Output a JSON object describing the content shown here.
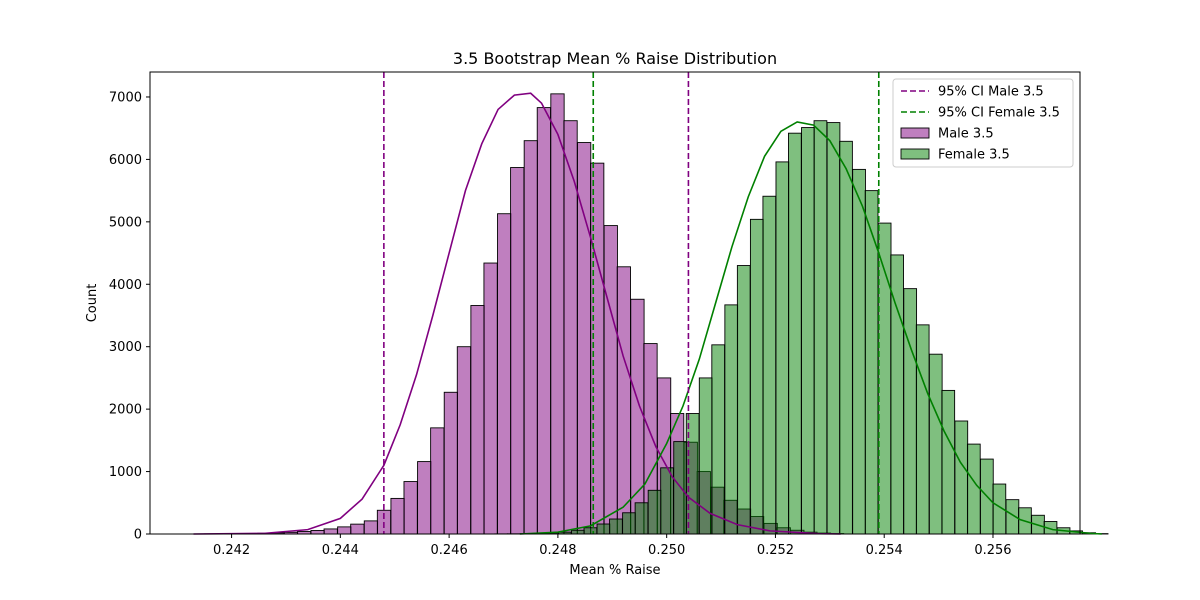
{
  "chart_data": {
    "type": "histogram",
    "title": "3.5 Bootstrap Mean % Raise Distribution",
    "xlabel": "Mean % Raise",
    "ylabel": "Count",
    "xlim": [
      0.2405,
      0.2576
    ],
    "ylim": [
      0,
      7400
    ],
    "xticks": [
      "0.242",
      "0.244",
      "0.246",
      "0.248",
      "0.250",
      "0.252",
      "0.254",
      "0.256"
    ],
    "yticks": [
      "0",
      "1000",
      "2000",
      "3000",
      "4000",
      "5000",
      "6000",
      "7000"
    ],
    "grid": false,
    "legend_position": "top-right",
    "legend": [
      {
        "label": "95% CI Male 3.5",
        "kind": "dashed-line",
        "color": "#800080"
      },
      {
        "label": "95% CI Female 3.5",
        "kind": "dashed-line",
        "color": "#008000"
      },
      {
        "label": "Male 3.5",
        "kind": "patch",
        "color": "#800080"
      },
      {
        "label": "Female 3.5",
        "kind": "patch",
        "color": "#008000"
      }
    ],
    "series": [
      {
        "name": "Male 3.5",
        "color": "#800080",
        "bin_width": 0.000245,
        "bins": [
          [
            0.24125,
            0
          ],
          [
            0.2415,
            2
          ],
          [
            0.24174,
            3
          ],
          [
            0.24199,
            5
          ],
          [
            0.24223,
            8
          ],
          [
            0.24248,
            12
          ],
          [
            0.24272,
            18
          ],
          [
            0.24297,
            27
          ],
          [
            0.24321,
            40
          ],
          [
            0.24346,
            57
          ],
          [
            0.2437,
            81
          ],
          [
            0.24395,
            114
          ],
          [
            0.24419,
            158
          ],
          [
            0.24444,
            210
          ],
          [
            0.24468,
            380
          ],
          [
            0.24493,
            570
          ],
          [
            0.24517,
            840
          ],
          [
            0.24542,
            1160
          ],
          [
            0.24566,
            1700
          ],
          [
            0.24591,
            2270
          ],
          [
            0.24615,
            3000
          ],
          [
            0.2464,
            3660
          ],
          [
            0.24664,
            4340
          ],
          [
            0.24689,
            5130
          ],
          [
            0.24713,
            5870
          ],
          [
            0.24738,
            6300
          ],
          [
            0.24762,
            6830
          ],
          [
            0.24787,
            7050
          ],
          [
            0.24811,
            6620
          ],
          [
            0.24836,
            6270
          ],
          [
            0.2486,
            5940
          ],
          [
            0.24885,
            4940
          ],
          [
            0.24909,
            4280
          ],
          [
            0.24934,
            3760
          ],
          [
            0.24958,
            3050
          ],
          [
            0.24983,
            2500
          ],
          [
            0.25007,
            1930
          ],
          [
            0.25032,
            1470
          ],
          [
            0.25056,
            1000
          ],
          [
            0.25081,
            750
          ],
          [
            0.25105,
            540
          ],
          [
            0.2513,
            400
          ],
          [
            0.25154,
            280
          ],
          [
            0.25179,
            170
          ],
          [
            0.25203,
            100
          ],
          [
            0.25228,
            60
          ],
          [
            0.25252,
            30
          ],
          [
            0.25277,
            15
          ],
          [
            0.25301,
            7
          ]
        ],
        "kde": [
          [
            0.2413,
            0
          ],
          [
            0.2426,
            10
          ],
          [
            0.2434,
            70
          ],
          [
            0.244,
            250
          ],
          [
            0.2444,
            560
          ],
          [
            0.2448,
            1100
          ],
          [
            0.2451,
            1750
          ],
          [
            0.2454,
            2550
          ],
          [
            0.2457,
            3500
          ],
          [
            0.246,
            4500
          ],
          [
            0.2463,
            5500
          ],
          [
            0.2466,
            6250
          ],
          [
            0.2469,
            6800
          ],
          [
            0.2472,
            7030
          ],
          [
            0.2475,
            7060
          ],
          [
            0.2477,
            6900
          ],
          [
            0.248,
            6400
          ],
          [
            0.2483,
            5650
          ],
          [
            0.2486,
            4750
          ],
          [
            0.2489,
            3800
          ],
          [
            0.2492,
            2850
          ],
          [
            0.2495,
            2050
          ],
          [
            0.2498,
            1400
          ],
          [
            0.2501,
            920
          ],
          [
            0.2504,
            590
          ],
          [
            0.2508,
            330
          ],
          [
            0.2513,
            150
          ],
          [
            0.2519,
            50
          ],
          [
            0.2528,
            5
          ],
          [
            0.2532,
            0
          ]
        ],
        "ci": [
          0.2448,
          0.2504
        ]
      },
      {
        "name": "Female 3.5",
        "color": "#008000",
        "bin_width": 0.000235,
        "bins": [
          [
            0.24684,
            2
          ],
          [
            0.24707,
            3
          ],
          [
            0.24731,
            5
          ],
          [
            0.24754,
            10
          ],
          [
            0.24778,
            18
          ],
          [
            0.24801,
            30
          ],
          [
            0.24825,
            60
          ],
          [
            0.24848,
            100
          ],
          [
            0.24872,
            160
          ],
          [
            0.24895,
            240
          ],
          [
            0.24919,
            340
          ],
          [
            0.24942,
            500
          ],
          [
            0.24966,
            700
          ],
          [
            0.24989,
            1060
          ],
          [
            0.25013,
            1480
          ],
          [
            0.25036,
            1930
          ],
          [
            0.2506,
            2500
          ],
          [
            0.25083,
            3030
          ],
          [
            0.25107,
            3670
          ],
          [
            0.2513,
            4300
          ],
          [
            0.25154,
            5040
          ],
          [
            0.25177,
            5410
          ],
          [
            0.25201,
            5960
          ],
          [
            0.25224,
            6420
          ],
          [
            0.25248,
            6510
          ],
          [
            0.25271,
            6620
          ],
          [
            0.25295,
            6590
          ],
          [
            0.25318,
            6290
          ],
          [
            0.25342,
            5840
          ],
          [
            0.25365,
            5500
          ],
          [
            0.25389,
            4980
          ],
          [
            0.25412,
            4470
          ],
          [
            0.25436,
            3930
          ],
          [
            0.25459,
            3350
          ],
          [
            0.25483,
            2880
          ],
          [
            0.25506,
            2300
          ],
          [
            0.2553,
            1810
          ],
          [
            0.25553,
            1440
          ],
          [
            0.25577,
            1200
          ],
          [
            0.256,
            800
          ],
          [
            0.25624,
            550
          ],
          [
            0.25647,
            420
          ],
          [
            0.25671,
            300
          ],
          [
            0.25694,
            200
          ],
          [
            0.25718,
            100
          ],
          [
            0.25741,
            50
          ],
          [
            0.25765,
            20
          ],
          [
            0.25788,
            6
          ]
        ],
        "kde": [
          [
            0.2473,
            0
          ],
          [
            0.248,
            30
          ],
          [
            0.2486,
            130
          ],
          [
            0.2492,
            430
          ],
          [
            0.2496,
            800
          ],
          [
            0.25,
            1450
          ],
          [
            0.2503,
            2050
          ],
          [
            0.2506,
            2800
          ],
          [
            0.2509,
            3700
          ],
          [
            0.2512,
            4600
          ],
          [
            0.2515,
            5400
          ],
          [
            0.2518,
            6050
          ],
          [
            0.2521,
            6450
          ],
          [
            0.2524,
            6600
          ],
          [
            0.2527,
            6550
          ],
          [
            0.253,
            6300
          ],
          [
            0.2533,
            5850
          ],
          [
            0.2536,
            5250
          ],
          [
            0.2539,
            4500
          ],
          [
            0.2542,
            3700
          ],
          [
            0.2545,
            2950
          ],
          [
            0.2548,
            2250
          ],
          [
            0.2551,
            1650
          ],
          [
            0.2554,
            1150
          ],
          [
            0.2557,
            780
          ],
          [
            0.256,
            500
          ],
          [
            0.2565,
            230
          ],
          [
            0.2571,
            70
          ],
          [
            0.2578,
            10
          ],
          [
            0.258,
            0
          ]
        ],
        "ci": [
          0.24865,
          0.2539
        ]
      }
    ]
  }
}
